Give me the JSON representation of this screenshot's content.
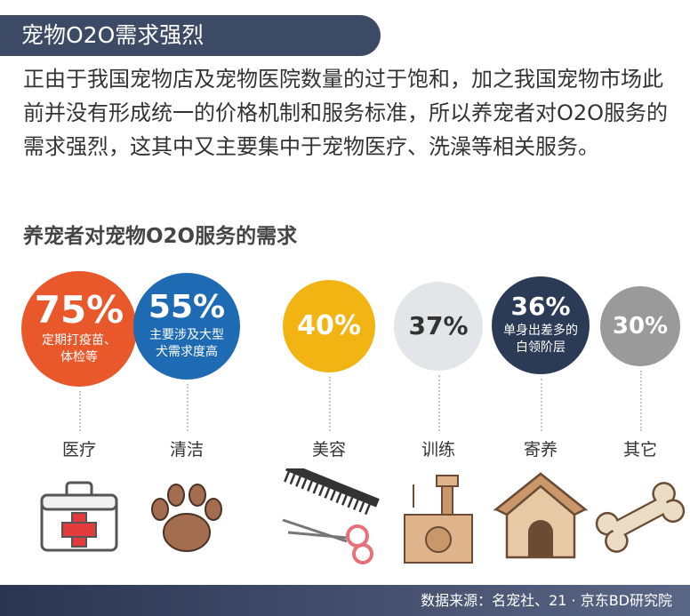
{
  "header": {
    "title": "宠物O2O需求强烈"
  },
  "intro": {
    "text": "正由于我国宠物店及宠物医院数量的过于饱和，加之我国宠物市场此前并没有形成统一的价格机制和服务标准，所以养宠者对O2O服务的需求强烈，这其中又主要集中于宠物医疗、洗澡等相关服务。"
  },
  "colors": {
    "header_bg": "#3d4a66",
    "medical": "#e8582a",
    "cleaning": "#1f6bb3",
    "grooming": "#f2b413",
    "training": "#e4e5e8",
    "boarding": "#2c3b55",
    "other": "#9a9a9a"
  },
  "chart_data": {
    "type": "bubble",
    "title": "养宠者对宠物O2O服务的需求",
    "categories": [
      "医疗",
      "清洁",
      "美容",
      "训练",
      "寄养",
      "其它"
    ],
    "values": [
      75,
      55,
      40,
      37,
      36,
      30
    ],
    "value_labels": [
      "75%",
      "55%",
      "40%",
      "37%",
      "36%",
      "30%"
    ],
    "notes": [
      "定期打疫苗、体检等",
      "主要涉及大型犬需求度高",
      "",
      "",
      "单身出差多的白领阶层",
      ""
    ],
    "icons": [
      "first-aid-kit-icon",
      "paw-icon",
      "comb-scissors-icon",
      "cat-tree-icon",
      "dog-house-icon",
      "bone-icon"
    ]
  },
  "footer": {
    "source": "数据来源：名宠社、21 · 京东BD研究院"
  }
}
